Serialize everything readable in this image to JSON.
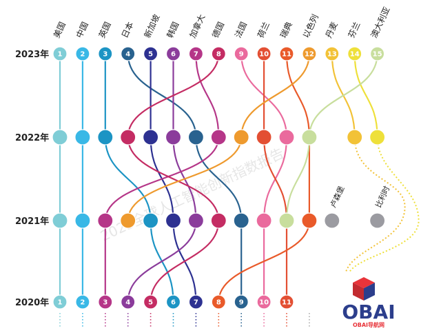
{
  "chart_data": {
    "type": "bump",
    "years": [
      "2023年",
      "2022年",
      "2021年",
      "2020年"
    ],
    "countries": [
      {
        "name": "美国",
        "color": "#7fcdd6",
        "ranks": [
          1,
          1,
          1,
          1
        ]
      },
      {
        "name": "中国",
        "color": "#39b8e6",
        "ranks": [
          2,
          2,
          2,
          2
        ]
      },
      {
        "name": "英国",
        "color": "#1c94c4",
        "ranks": [
          3,
          3,
          5,
          6
        ]
      },
      {
        "name": "日本",
        "color": "#29628f",
        "ranks": [
          4,
          7,
          9,
          9
        ]
      },
      {
        "name": "新加坡",
        "color": "#2d3191",
        "ranks": [
          5,
          5,
          6,
          7
        ]
      },
      {
        "name": "韩国",
        "color": "#8b3c9b",
        "ranks": [
          6,
          6,
          7,
          4
        ]
      },
      {
        "name": "加拿大",
        "color": "#b53688",
        "ranks": [
          7,
          8,
          3,
          3
        ]
      },
      {
        "name": "德国",
        "color": "#c42c63",
        "ranks": [
          8,
          4,
          8,
          5
        ]
      },
      {
        "name": "法国",
        "color": "#ea6a9d",
        "ranks": [
          9,
          11,
          10,
          10
        ]
      },
      {
        "name": "荷兰",
        "color": "#e34f33",
        "ranks": [
          10,
          10,
          11,
          11
        ]
      },
      {
        "name": "瑞典",
        "color": "#e95a2a",
        "ranks": [
          11,
          12,
          12,
          8
        ]
      },
      {
        "name": "以色列",
        "color": "#ee9a2e",
        "ranks": [
          12,
          9,
          4,
          null
        ]
      },
      {
        "name": "丹麦",
        "color": "#f2c237",
        "ranks": [
          13,
          14,
          null,
          null
        ]
      },
      {
        "name": "芬兰",
        "color": "#eee03a",
        "ranks": [
          14,
          15,
          null,
          null
        ]
      },
      {
        "name": "澳大利亚",
        "color": "#c8de9d",
        "ranks": [
          15,
          12,
          11,
          null
        ]
      }
    ],
    "extra_2021": [
      {
        "name": "卢森堡",
        "color": "#9b9ba1",
        "rank": 13
      },
      {
        "name": "比利时",
        "color": "#9b9ba1",
        "rank": 15
      }
    ]
  },
  "watermark": "2023全球人工智能创新指数报告",
  "logo": {
    "title": "OBAI",
    "subtitle": "OBAI导航网"
  }
}
